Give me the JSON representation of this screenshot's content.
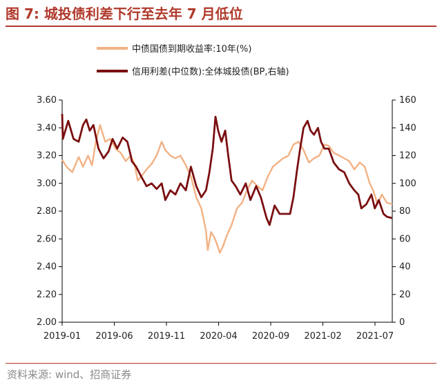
{
  "header": {
    "title": "图 7:  城投债利差下行至去年 7 月低位"
  },
  "footer": {
    "source": "资料来源:  wind、招商证券"
  },
  "colors": {
    "accent": "#b0392b",
    "yield_series": "#f2b183",
    "spread_series": "#7a0e10"
  },
  "chart_data": {
    "type": "line",
    "legend_placement": "top",
    "grid": false,
    "x_ticks": [
      "2019-01",
      "2019-06",
      "2019-11",
      "2020-04",
      "2020-09",
      "2021-02",
      "2021-07"
    ],
    "x_range": [
      "2019-01-02",
      "2021-09-10"
    ],
    "left_axis": {
      "ylim": [
        2.0,
        3.6
      ],
      "ticks": [
        "2.00",
        "2.20",
        "2.40",
        "2.60",
        "2.80",
        "3.00",
        "3.20",
        "3.40",
        "3.60"
      ]
    },
    "right_axis": {
      "ylim": [
        0,
        160
      ],
      "ticks": [
        "0",
        "20",
        "40",
        "60",
        "80",
        "100",
        "120",
        "140",
        "160"
      ]
    },
    "series": [
      {
        "name": "中债国债到期收益率:10年(%)",
        "axis": "left",
        "points": [
          [
            "2019-01-02",
            3.17
          ],
          [
            "2019-01-15",
            3.12
          ],
          [
            "2019-02-01",
            3.08
          ],
          [
            "2019-02-20",
            3.19
          ],
          [
            "2019-03-05",
            3.12
          ],
          [
            "2019-03-20",
            3.2
          ],
          [
            "2019-04-01",
            3.13
          ],
          [
            "2019-04-12",
            3.3
          ],
          [
            "2019-04-25",
            3.42
          ],
          [
            "2019-05-10",
            3.3
          ],
          [
            "2019-05-25",
            3.32
          ],
          [
            "2019-06-10",
            3.25
          ],
          [
            "2019-06-25",
            3.22
          ],
          [
            "2019-07-10",
            3.16
          ],
          [
            "2019-07-25",
            3.2
          ],
          [
            "2019-08-05",
            3.14
          ],
          [
            "2019-08-15",
            3.02
          ],
          [
            "2019-08-25",
            3.05
          ],
          [
            "2019-09-10",
            3.1
          ],
          [
            "2019-09-25",
            3.14
          ],
          [
            "2019-10-10",
            3.2
          ],
          [
            "2019-10-25",
            3.3
          ],
          [
            "2019-11-05",
            3.24
          ],
          [
            "2019-11-20",
            3.2
          ],
          [
            "2019-12-05",
            3.18
          ],
          [
            "2019-12-20",
            3.2
          ],
          [
            "2020-01-05",
            3.13
          ],
          [
            "2020-01-20",
            3.05
          ],
          [
            "2020-02-05",
            2.9
          ],
          [
            "2020-02-20",
            2.82
          ],
          [
            "2020-03-05",
            2.66
          ],
          [
            "2020-03-10",
            2.52
          ],
          [
            "2020-03-20",
            2.65
          ],
          [
            "2020-04-01",
            2.6
          ],
          [
            "2020-04-15",
            2.5
          ],
          [
            "2020-04-25",
            2.55
          ],
          [
            "2020-05-05",
            2.62
          ],
          [
            "2020-05-20",
            2.7
          ],
          [
            "2020-06-05",
            2.82
          ],
          [
            "2020-06-20",
            2.86
          ],
          [
            "2020-07-05",
            2.95
          ],
          [
            "2020-07-20",
            3.02
          ],
          [
            "2020-08-05",
            2.98
          ],
          [
            "2020-08-20",
            2.95
          ],
          [
            "2020-09-05",
            3.05
          ],
          [
            "2020-09-20",
            3.12
          ],
          [
            "2020-10-05",
            3.15
          ],
          [
            "2020-10-20",
            3.18
          ],
          [
            "2020-11-05",
            3.2
          ],
          [
            "2020-11-20",
            3.28
          ],
          [
            "2020-12-05",
            3.3
          ],
          [
            "2020-12-20",
            3.24
          ],
          [
            "2021-01-05",
            3.15
          ],
          [
            "2021-01-20",
            3.18
          ],
          [
            "2021-02-05",
            3.2
          ],
          [
            "2021-02-20",
            3.28
          ],
          [
            "2021-03-05",
            3.27
          ],
          [
            "2021-03-20",
            3.22
          ],
          [
            "2021-04-05",
            3.2
          ],
          [
            "2021-04-20",
            3.18
          ],
          [
            "2021-05-05",
            3.16
          ],
          [
            "2021-05-20",
            3.1
          ],
          [
            "2021-06-05",
            3.15
          ],
          [
            "2021-06-20",
            3.12
          ],
          [
            "2021-07-05",
            3.0
          ],
          [
            "2021-07-15",
            2.95
          ],
          [
            "2021-07-28",
            2.85
          ],
          [
            "2021-08-10",
            2.92
          ],
          [
            "2021-08-25",
            2.86
          ],
          [
            "2021-09-10",
            2.85
          ]
        ]
      },
      {
        "name": "信用利差(中位数):全体城投债(BP,右轴)",
        "axis": "right",
        "points": [
          [
            "2019-01-02",
            150
          ],
          [
            "2019-01-04",
            132
          ],
          [
            "2019-01-20",
            145
          ],
          [
            "2019-02-05",
            132
          ],
          [
            "2019-02-20",
            130
          ],
          [
            "2019-03-05",
            142
          ],
          [
            "2019-03-15",
            146
          ],
          [
            "2019-03-25",
            138
          ],
          [
            "2019-04-05",
            142
          ],
          [
            "2019-04-20",
            125
          ],
          [
            "2019-05-05",
            118
          ],
          [
            "2019-05-20",
            123
          ],
          [
            "2019-06-01",
            132
          ],
          [
            "2019-06-15",
            125
          ],
          [
            "2019-07-01",
            133
          ],
          [
            "2019-07-15",
            130
          ],
          [
            "2019-07-25",
            120
          ],
          [
            "2019-07-28",
            116
          ],
          [
            "2019-08-10",
            112
          ],
          [
            "2019-08-25",
            105
          ],
          [
            "2019-09-10",
            98
          ],
          [
            "2019-09-25",
            100
          ],
          [
            "2019-10-10",
            96
          ],
          [
            "2019-10-25",
            100
          ],
          [
            "2019-11-05",
            88
          ],
          [
            "2019-11-20",
            95
          ],
          [
            "2019-12-05",
            92
          ],
          [
            "2019-12-20",
            100
          ],
          [
            "2020-01-05",
            95
          ],
          [
            "2020-01-20",
            112
          ],
          [
            "2020-02-05",
            98
          ],
          [
            "2020-02-20",
            90
          ],
          [
            "2020-03-05",
            95
          ],
          [
            "2020-03-15",
            108
          ],
          [
            "2020-03-25",
            125
          ],
          [
            "2020-04-02",
            148
          ],
          [
            "2020-04-10",
            138
          ],
          [
            "2020-04-20",
            130
          ],
          [
            "2020-05-01",
            138
          ],
          [
            "2020-05-10",
            120
          ],
          [
            "2020-05-20",
            102
          ],
          [
            "2020-06-01",
            98
          ],
          [
            "2020-06-15",
            92
          ],
          [
            "2020-07-01",
            100
          ],
          [
            "2020-07-15",
            88
          ],
          [
            "2020-08-01",
            98
          ],
          [
            "2020-08-15",
            90
          ],
          [
            "2020-09-01",
            75
          ],
          [
            "2020-09-10",
            70
          ],
          [
            "2020-09-25",
            84
          ],
          [
            "2020-10-10",
            78
          ],
          [
            "2020-10-25",
            78
          ],
          [
            "2020-11-10",
            78
          ],
          [
            "2020-11-20",
            90
          ],
          [
            "2020-12-01",
            110
          ],
          [
            "2020-12-10",
            125
          ],
          [
            "2020-12-20",
            140
          ],
          [
            "2021-01-01",
            145
          ],
          [
            "2021-01-10",
            138
          ],
          [
            "2021-01-20",
            135
          ],
          [
            "2021-02-01",
            140
          ],
          [
            "2021-02-10",
            130
          ],
          [
            "2021-02-20",
            125
          ],
          [
            "2021-03-05",
            125
          ],
          [
            "2021-03-20",
            115
          ],
          [
            "2021-04-05",
            110
          ],
          [
            "2021-04-20",
            108
          ],
          [
            "2021-05-05",
            100
          ],
          [
            "2021-05-20",
            95
          ],
          [
            "2021-06-01",
            92
          ],
          [
            "2021-06-10",
            82
          ],
          [
            "2021-06-25",
            85
          ],
          [
            "2021-07-10",
            92
          ],
          [
            "2021-07-20",
            82
          ],
          [
            "2021-08-01",
            88
          ],
          [
            "2021-08-15",
            78
          ],
          [
            "2021-08-25",
            76
          ],
          [
            "2021-09-10",
            75
          ]
        ]
      }
    ]
  }
}
